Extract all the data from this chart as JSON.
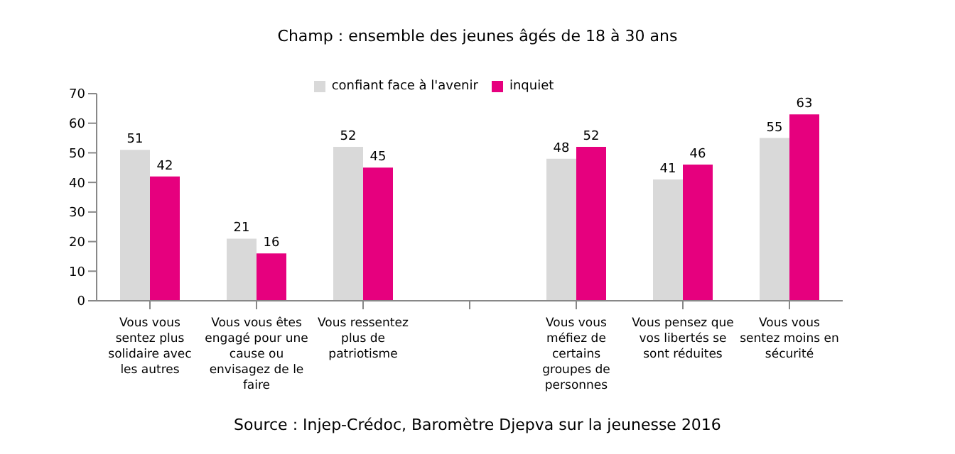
{
  "chart_data": {
    "type": "bar",
    "subtitle": "Champ : ensemble des jeunes âgés de 18 à 30 ans",
    "categories": [
      "Vous vous sentez plus solidaire avec les autres",
      "Vous vous êtes engagé pour une cause ou envisagez de le faire",
      "Vous ressentez plus de patriotisme",
      null,
      "Vous vous méfiez de certains groupes de personnes",
      "Vous pensez que vos libertés se sont réduites",
      "Vous vous sentez moins en sécurité"
    ],
    "series": [
      {
        "name": "confiant face à l'avenir",
        "color": "#d9d9d9",
        "values": [
          51,
          21,
          52,
          null,
          48,
          41,
          55
        ]
      },
      {
        "name": "inquiet",
        "color": "#e6007e",
        "values": [
          42,
          16,
          45,
          null,
          52,
          46,
          63
        ]
      }
    ],
    "ylim": [
      0,
      70
    ],
    "yticks": [
      0,
      10,
      20,
      30,
      40,
      50,
      60,
      70
    ],
    "data_labels": true,
    "legend": "top",
    "grid": false,
    "annotations": [
      "Source : Injep-Crédoc, Baromètre Djepva sur la jeunesse 2016"
    ]
  }
}
